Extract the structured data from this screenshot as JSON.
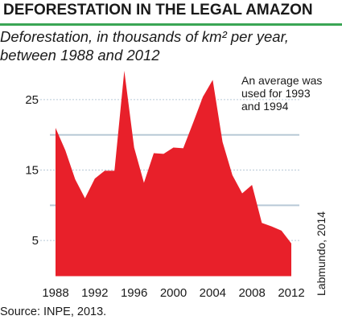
{
  "header": {
    "title": "DEFORESTATION IN THE LEGAL AMAZON",
    "subtitle_line1": "Deforestation, in thousands of km² per year,",
    "subtitle_line2": "between 1988 and 2012"
  },
  "footer": {
    "source": "Source: INPE, 2013.",
    "credit": "Labmundo, 2014"
  },
  "colors": {
    "fill": "#e8202a",
    "grid": "#b8c9d6",
    "rule": "#3aa655"
  },
  "chart_data": {
    "type": "area",
    "title": "DEFORESTATION IN THE LEGAL AMAZON",
    "subtitle": "Deforestation, in thousands of km² per year, between 1988 and 2012",
    "xlabel": "",
    "ylabel": "",
    "x": [
      1988,
      1989,
      1990,
      1991,
      1992,
      1993,
      1994,
      1995,
      1996,
      1997,
      1998,
      1999,
      2000,
      2001,
      2002,
      2003,
      2004,
      2005,
      2006,
      2007,
      2008,
      2009,
      2010,
      2011,
      2012
    ],
    "series": [
      {
        "values": [
          21.0,
          17.8,
          13.7,
          11.0,
          13.8,
          14.9,
          14.9,
          29.1,
          18.2,
          13.2,
          17.4,
          17.3,
          18.2,
          18.1,
          21.7,
          25.4,
          27.8,
          19.0,
          14.3,
          11.7,
          12.9,
          7.5,
          7.0,
          6.4,
          4.6
        ]
      }
    ],
    "xticks": [
      1988,
      1992,
      1996,
      2000,
      2004,
      2008,
      2012
    ],
    "yticks": [
      5,
      15,
      25
    ],
    "ylim": [
      0,
      30
    ],
    "grid": true,
    "annotation": [
      "An average was",
      "used for 1993",
      "and 1994"
    ]
  }
}
